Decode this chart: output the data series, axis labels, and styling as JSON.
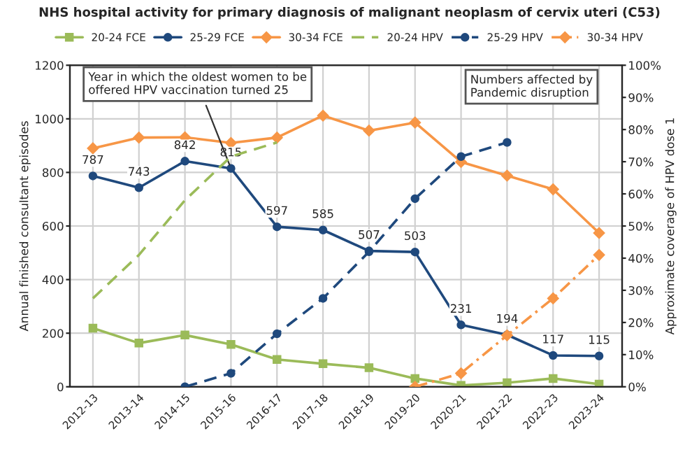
{
  "chart_data": {
    "type": "line",
    "title": "NHS hospital activity for primary diagnosis of malignant neoplasm of cervix uteri (C53)",
    "ylabel": "Annual finished consultant episodes",
    "y2label": "Approximate coverage of HPV dose 1",
    "categories": [
      "2012-13",
      "2013-14",
      "2014-15",
      "2015-16",
      "2016-17",
      "2017-18",
      "2018-19",
      "2019-20",
      "2020-21",
      "2021-22",
      "2022-23",
      "2023-24"
    ],
    "series": [
      {
        "name": "20-24 FCE",
        "color": "#9bbb59",
        "marker": "square",
        "line_style": "solid",
        "values": [
          219,
          163,
          193,
          158,
          102,
          86,
          71,
          31,
          5,
          15,
          31,
          10
        ]
      },
      {
        "name": "25-29 FCE",
        "color": "#1f497d",
        "marker": "circle",
        "line_style": "solid",
        "values": [
          787,
          743,
          842,
          815,
          597,
          585,
          507,
          503,
          231,
          194,
          117,
          115
        ],
        "value_labels": [
          "787",
          "743",
          "842",
          "815",
          "597",
          "585",
          "507",
          "503",
          "231",
          "194",
          "117",
          "115"
        ]
      },
      {
        "name": "30-34 FCE",
        "color": "#f79646",
        "marker": "diamond",
        "line_style": "solid",
        "values": [
          890,
          930,
          931,
          910,
          930,
          1012,
          956,
          986,
          839,
          788,
          737,
          574
        ]
      },
      {
        "name": "20-24 HPV",
        "color": "#9bbb59",
        "marker": "none",
        "line_style": "dashed",
        "axis": "y2",
        "values": [
          27.5,
          41,
          58,
          71.6,
          76,
          null,
          null,
          null,
          null,
          null,
          null,
          null
        ]
      },
      {
        "name": "25-29 HPV",
        "color": "#1f497d",
        "marker": "circle",
        "line_style": "dashed",
        "axis": "y2",
        "values": [
          null,
          null,
          0,
          4.2,
          16.5,
          27.5,
          42,
          58.5,
          71.6,
          76,
          null,
          null
        ]
      },
      {
        "name": "30-34 HPV",
        "color": "#f79646",
        "marker": "diamond",
        "line_style": "dotted",
        "axis": "y2",
        "values": [
          null,
          null,
          null,
          null,
          null,
          null,
          null,
          0,
          4.2,
          16,
          27.5,
          41
        ]
      }
    ],
    "ylim": [
      0,
      1200
    ],
    "yticks": [
      0,
      200,
      400,
      600,
      800,
      1000,
      1200
    ],
    "y2lim": [
      0,
      100
    ],
    "y2ticks": [
      {
        "value": 0,
        "label": "0%"
      },
      {
        "value": 10,
        "label": "10%"
      },
      {
        "value": 20,
        "label": "20%"
      },
      {
        "value": 30,
        "label": "30%"
      },
      {
        "value": 40,
        "label": "40%"
      },
      {
        "value": 50,
        "label": "50%"
      },
      {
        "value": 60,
        "label": "60%"
      },
      {
        "value": 70,
        "label": "70%"
      },
      {
        "value": 80,
        "label": "80%"
      },
      {
        "value": 90,
        "label": "90%"
      },
      {
        "value": 100,
        "label": "100%"
      }
    ],
    "annotations": [
      {
        "text": "Year in which the oldest women to be\noffered HPV vaccination turned 25",
        "x": "2015-16",
        "y": 815
      },
      "Numbers affected by\nPandemic disruption"
    ],
    "grid": true,
    "legend": "top"
  }
}
